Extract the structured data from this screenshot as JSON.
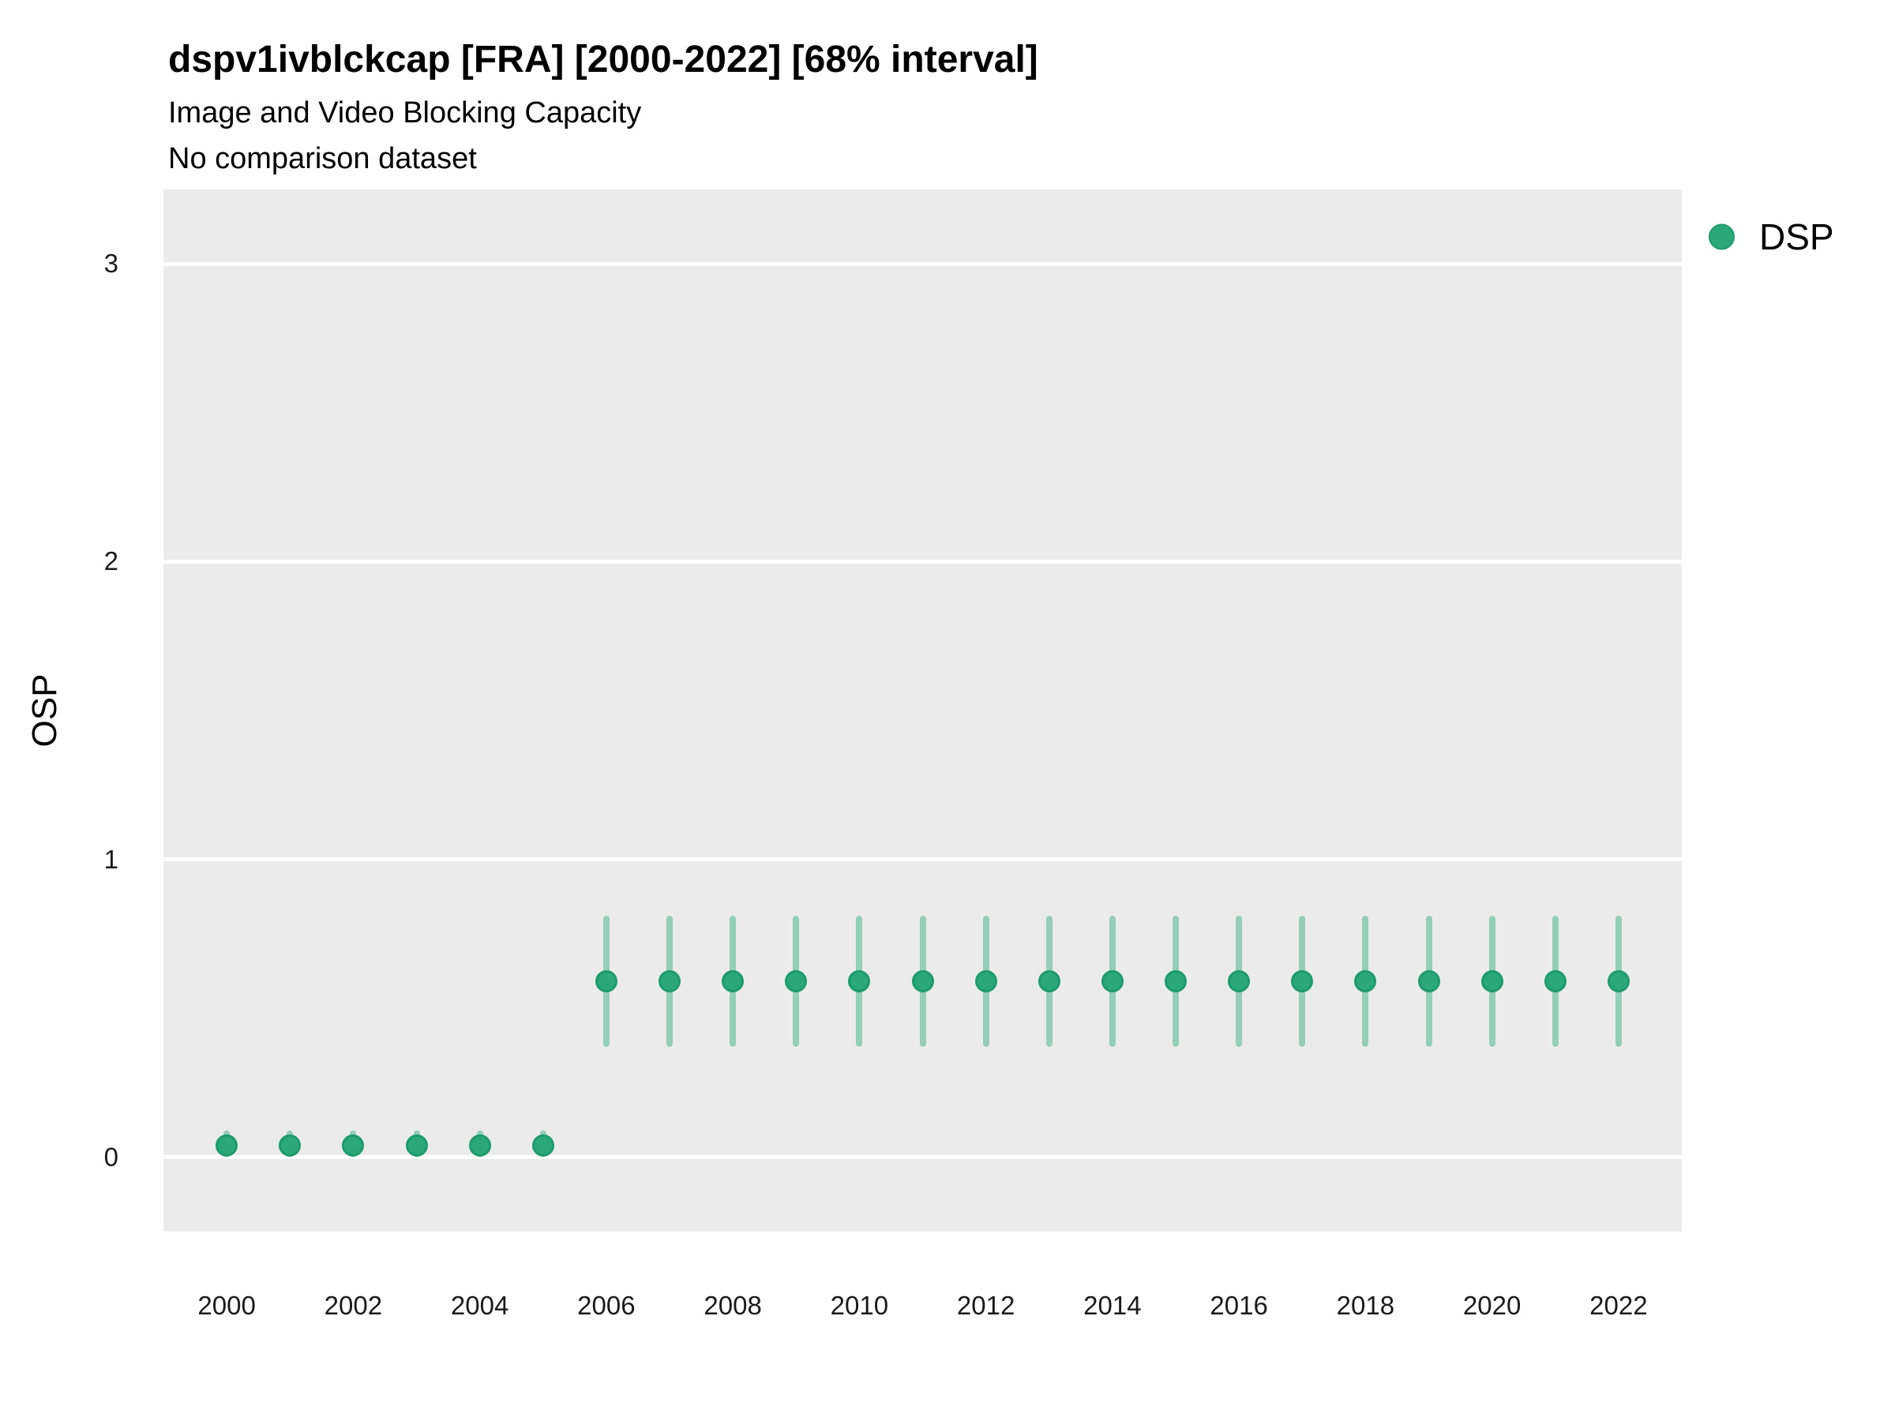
{
  "header": {
    "title": "dspv1ivblckcap [FRA] [2000-2022] [68% interval]",
    "subtitle": "Image and Video Blocking Capacity",
    "comparison_note": "No comparison dataset"
  },
  "chart_data": {
    "type": "scatter",
    "title": "dspv1ivblckcap [FRA] [2000-2022] [68% interval]",
    "subtitle": "Image and Video Blocking Capacity",
    "note": "No comparison dataset",
    "interval_level": "68%",
    "xlabel": "",
    "ylabel": "OSP",
    "x": [
      2000,
      2001,
      2002,
      2003,
      2004,
      2005,
      2006,
      2007,
      2008,
      2009,
      2010,
      2011,
      2012,
      2013,
      2014,
      2015,
      2016,
      2017,
      2018,
      2019,
      2020,
      2021,
      2022
    ],
    "series": [
      {
        "name": "DSP",
        "values": [
          0.04,
          0.04,
          0.04,
          0.04,
          0.04,
          0.04,
          0.59,
          0.59,
          0.59,
          0.59,
          0.59,
          0.59,
          0.59,
          0.59,
          0.59,
          0.59,
          0.59,
          0.59,
          0.59,
          0.59,
          0.59,
          0.59,
          0.59
        ],
        "lower": [
          0.0,
          0.0,
          0.0,
          0.0,
          0.0,
          0.0,
          0.37,
          0.37,
          0.37,
          0.37,
          0.37,
          0.37,
          0.37,
          0.37,
          0.37,
          0.37,
          0.37,
          0.37,
          0.37,
          0.37,
          0.37,
          0.37,
          0.37
        ],
        "upper": [
          0.09,
          0.09,
          0.09,
          0.09,
          0.09,
          0.09,
          0.81,
          0.81,
          0.81,
          0.81,
          0.81,
          0.81,
          0.81,
          0.81,
          0.81,
          0.81,
          0.81,
          0.81,
          0.81,
          0.81,
          0.81,
          0.81,
          0.81
        ]
      }
    ],
    "xlim": [
      1999,
      2023
    ],
    "ylim": [
      -0.25,
      3.25
    ],
    "xticks": [
      2000,
      2002,
      2004,
      2006,
      2008,
      2010,
      2012,
      2014,
      2016,
      2018,
      2020,
      2022
    ],
    "yticks": [
      0,
      1,
      2,
      3
    ],
    "grid": "horizontal-major-only",
    "legend_position": "right",
    "colors": {
      "panel_bg": "#ebebeb",
      "gridline": "#ffffff",
      "point_fill": "#2ba87a",
      "point_border": "#1e9b6c",
      "interval_bar": "rgba(43, 168, 122, 0.45)",
      "axis_text": "#1a1a1a",
      "title_text": "#000000"
    }
  }
}
